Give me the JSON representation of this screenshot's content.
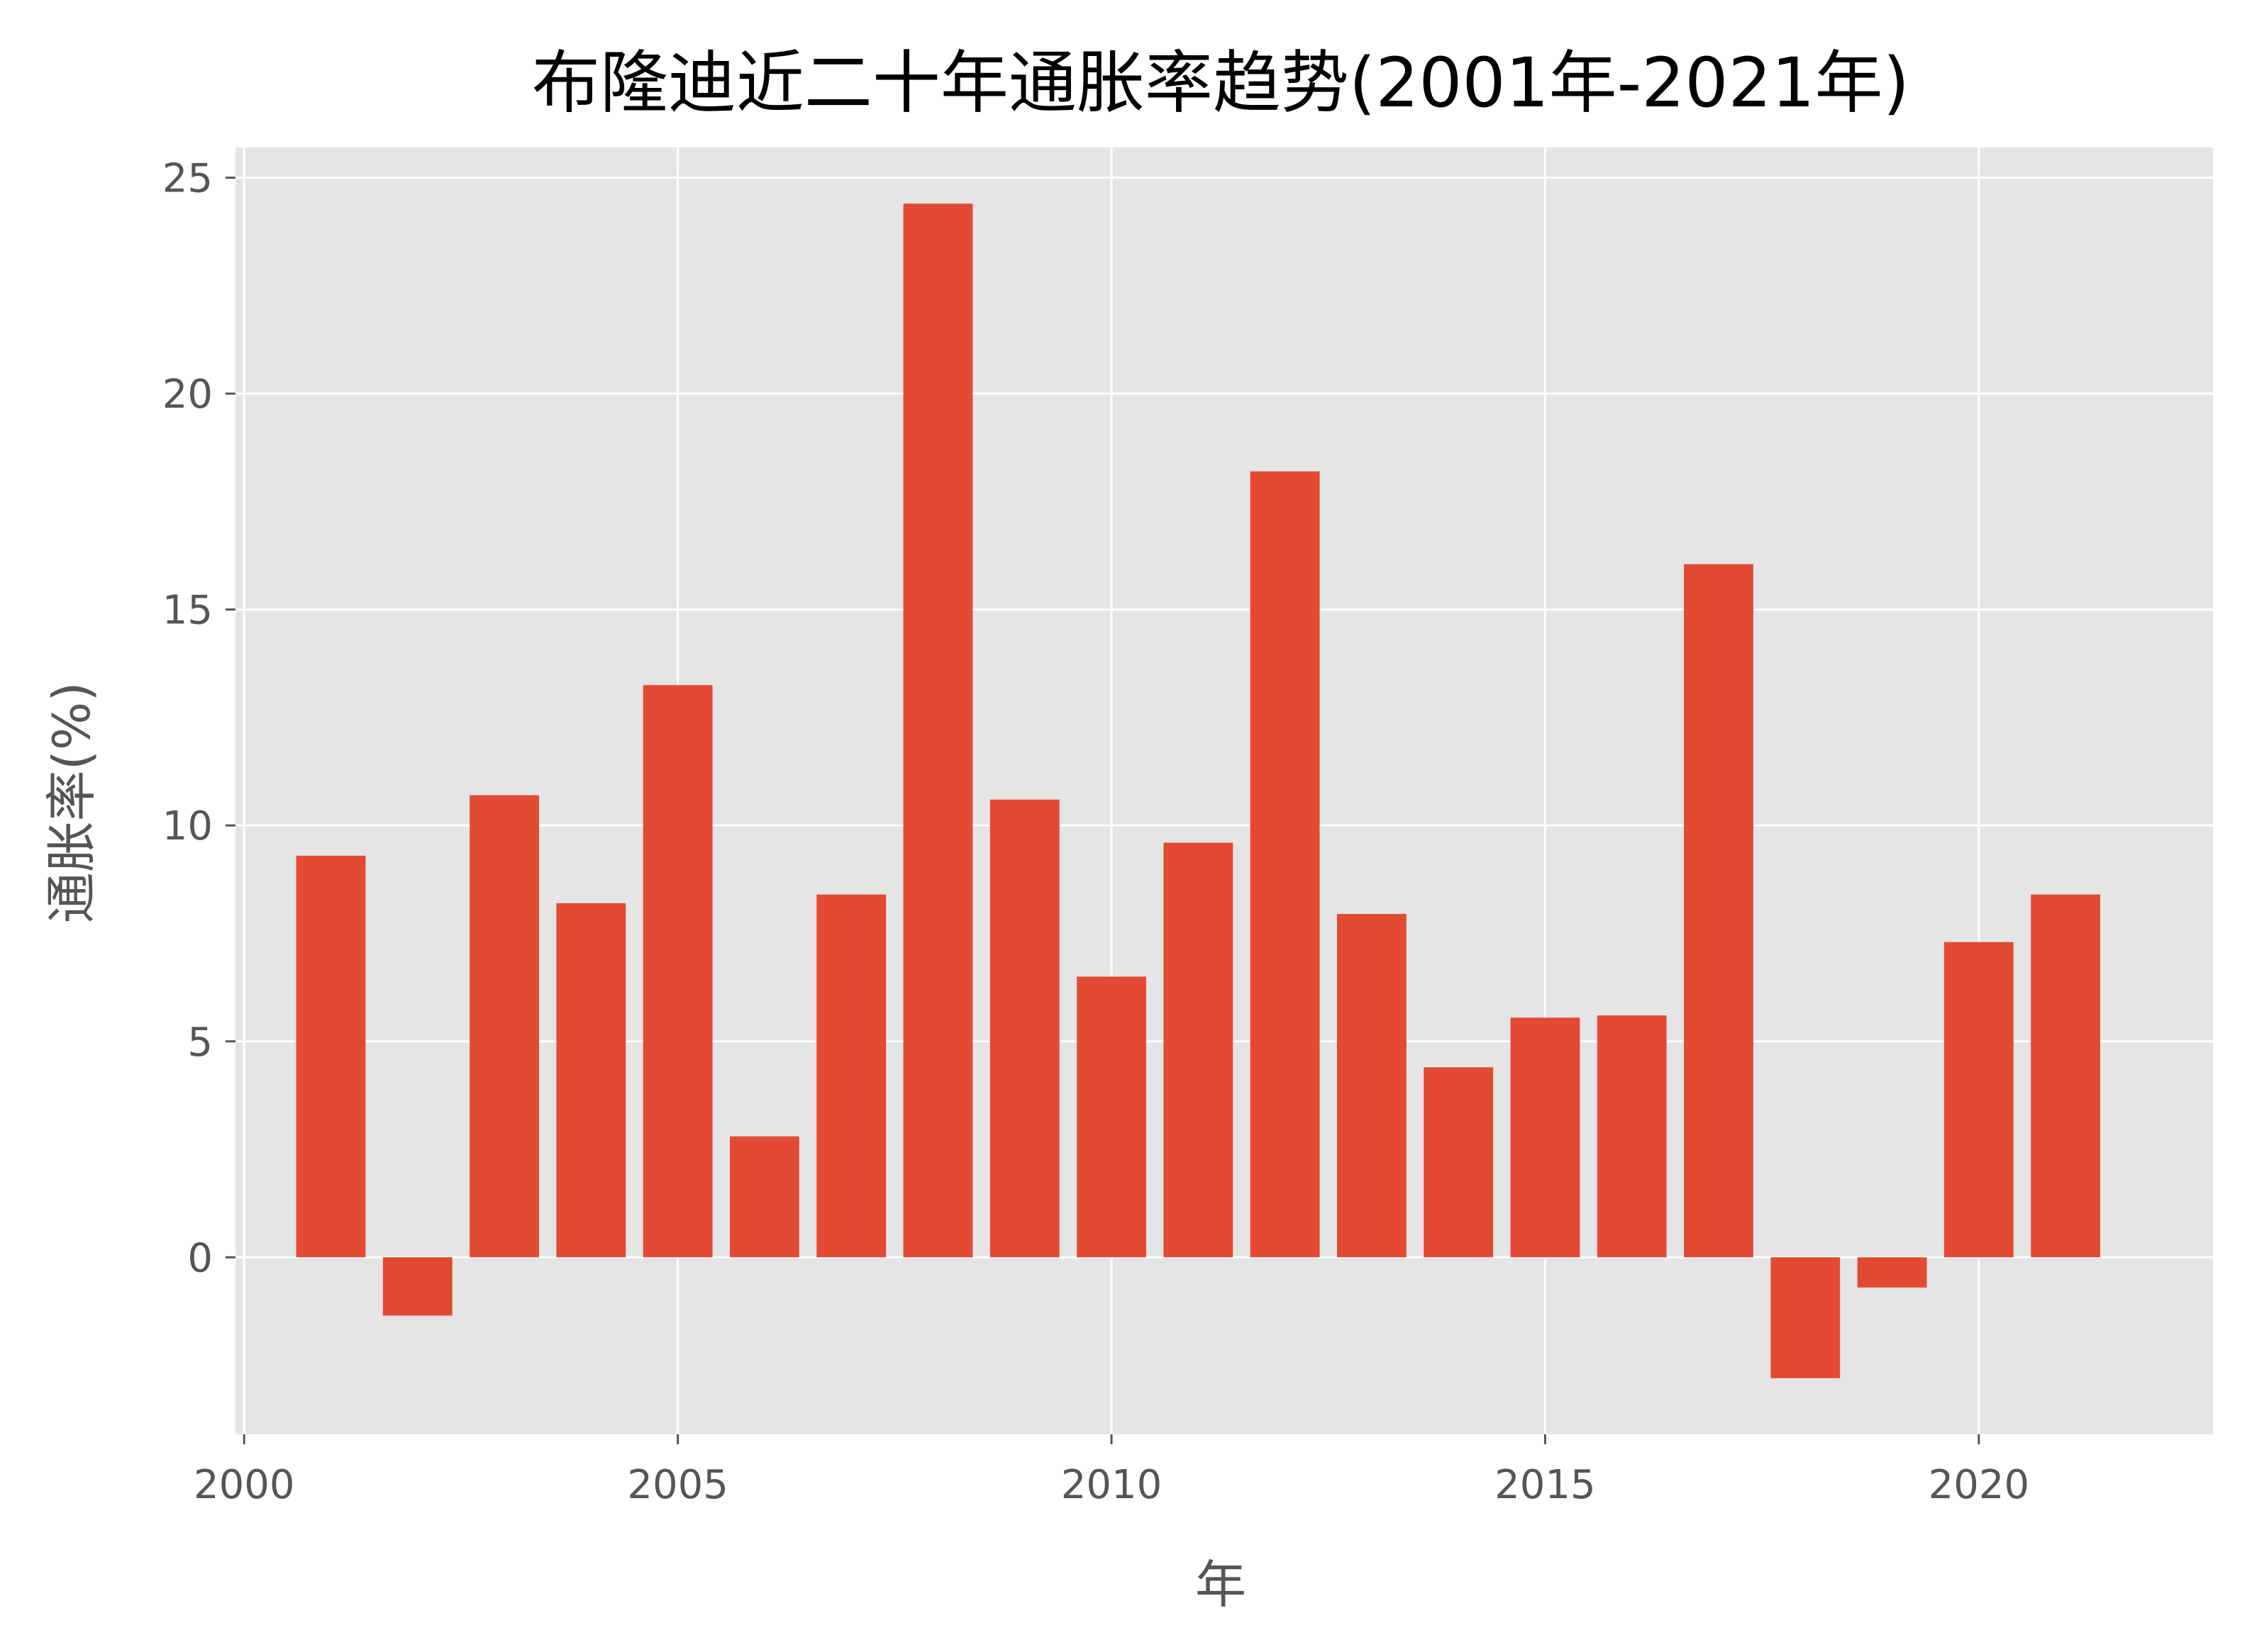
{
  "chart_data": {
    "type": "bar",
    "title": "布隆迪近二十年通胀率趋势(2001年-2021年)",
    "xlabel": "年",
    "ylabel": "通胀率(%)",
    "x": [
      2001,
      2002,
      2003,
      2004,
      2005,
      2006,
      2007,
      2008,
      2009,
      2010,
      2011,
      2012,
      2013,
      2014,
      2015,
      2016,
      2017,
      2018,
      2019,
      2020,
      2021
    ],
    "values": [
      9.3,
      -1.35,
      10.7,
      8.2,
      13.25,
      2.8,
      8.4,
      24.4,
      10.6,
      6.5,
      9.6,
      18.2,
      7.95,
      4.4,
      5.55,
      5.6,
      16.05,
      -2.8,
      -0.7,
      7.3,
      8.4
    ],
    "xlim": [
      1999.9,
      2022.7
    ],
    "ylim": [
      -4.1,
      25.7
    ],
    "xticks": [
      2000,
      2005,
      2010,
      2015,
      2020
    ],
    "yticks": [
      0,
      5,
      10,
      15,
      20,
      25
    ],
    "grid": true,
    "bar_width": 0.8,
    "colors": {
      "bar": "#E24A33",
      "plot_background": "#E5E5E5",
      "grid": "#FFFFFF",
      "tick_label": "#555555",
      "title": "#000000"
    }
  }
}
